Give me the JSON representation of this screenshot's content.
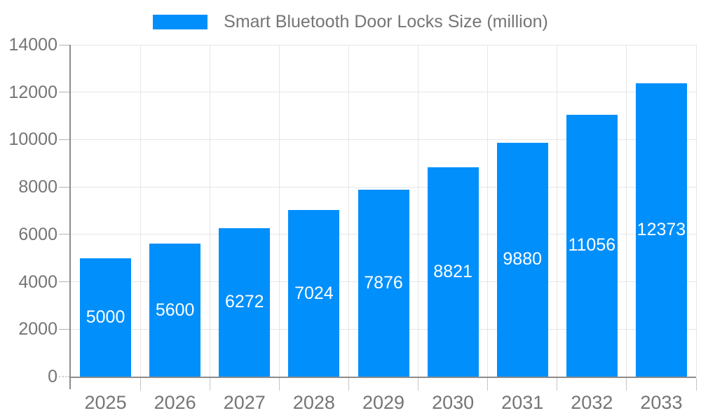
{
  "legend": {
    "items": [
      {
        "label": "Smart Bluetooth Door Locks Size (million)",
        "color": "#008ffb"
      }
    ]
  },
  "colors": {
    "bar": "#008ffb",
    "bar_value_label": "#ffffff",
    "axis_line": "#8c8c8c",
    "grid_line": "#e6e6e6",
    "tick": "#b3b3b3",
    "label_text": "#757575",
    "background": "#ffffff"
  },
  "chart_data": {
    "type": "bar",
    "title": "Smart Bluetooth Door Locks Size (million)",
    "categories": [
      "2025",
      "2026",
      "2027",
      "2028",
      "2029",
      "2030",
      "2031",
      "2032",
      "2033"
    ],
    "series": [
      {
        "name": "Smart Bluetooth Door Locks Size (million)",
        "values": [
          5000,
          5600,
          6272,
          7024,
          7876,
          8821,
          9880,
          11056,
          12373
        ]
      }
    ],
    "xlabel": "",
    "ylabel": "",
    "ylim": [
      0,
      14000
    ],
    "yticks": [
      0,
      2000,
      4000,
      6000,
      8000,
      10000,
      12000,
      14000
    ],
    "grid": true,
    "legend_position": "top-center",
    "value_labels_position": "inside-center"
  }
}
